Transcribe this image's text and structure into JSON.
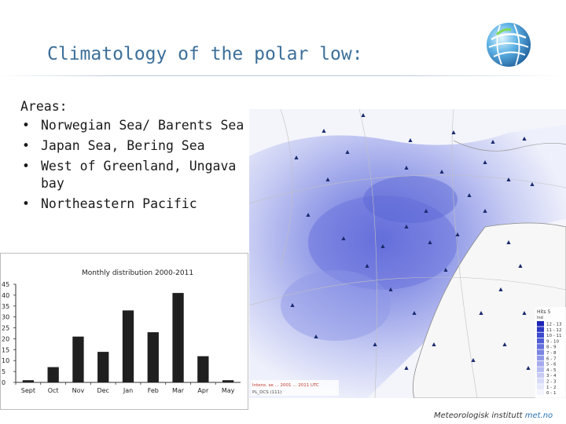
{
  "slide": {
    "title": "Climatology of the polar low:",
    "areas_heading": "Areas:",
    "areas": [
      "Norwegian Sea/ Barents Sea",
      "Japan Sea, Bering Sea",
      "West of Greenland, Ungava bay",
      "Northeastern Pacific"
    ],
    "bullet": "•",
    "footer_institute": "Meteorologisk institutt",
    "footer_brand": "met.no"
  },
  "map": {
    "legend_title": "Hits 5",
    "legend_unit": "Ind",
    "legend_classes": [
      "12 - 13",
      "11 - 12",
      "10 - 11",
      "9 - 10",
      "8 - 9",
      "7 - 8",
      "6 - 7",
      "5 - 6",
      "4 - 5",
      "3 - 4",
      "2 - 3",
      "1 - 2",
      "0 - 1"
    ],
    "legend_colors": [
      "#1d24b8",
      "#2d37c4",
      "#3d4acd",
      "#4f5cd5",
      "#6570dc",
      "#7b85e2",
      "#9099e8",
      "#a4abed",
      "#b7bdf1",
      "#c8ccf5",
      "#d8dbf8",
      "#e6e8fb",
      "#f3f4fd"
    ],
    "caption_line1": "Intens. se ... 2001 ... 2011 UTC",
    "caption_line2": "PL_DCS (111)"
  },
  "chart_data": {
    "type": "bar",
    "title": "Monthly distribution 2000-2011",
    "categories": [
      "Sept",
      "Oct",
      "Nov",
      "Dec",
      "Jan",
      "Feb",
      "Mar",
      "Apr",
      "May"
    ],
    "values": [
      1,
      7,
      21,
      14,
      33,
      23,
      41,
      12,
      1
    ],
    "ylim": [
      0,
      45
    ],
    "yticks": [
      0,
      5,
      10,
      15,
      20,
      25,
      30,
      35,
      40,
      45
    ],
    "grid": false,
    "bar_color": "#1f1f1f",
    "xlabel": "",
    "ylabel": ""
  }
}
